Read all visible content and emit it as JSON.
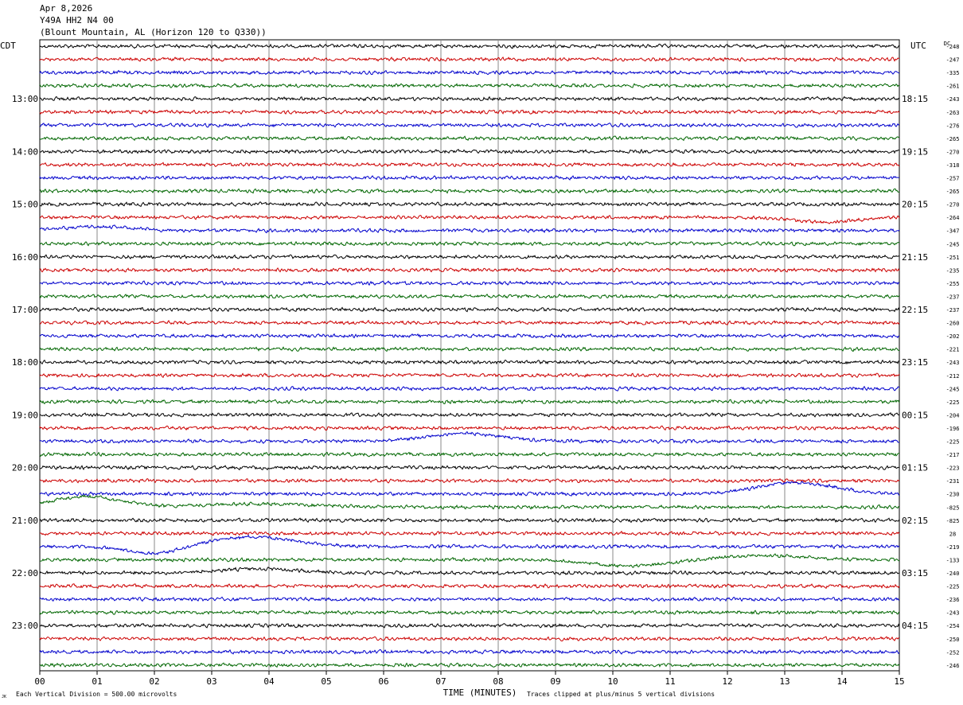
{
  "header": {
    "date": "Apr 8,2026",
    "channel": "Y49A HH2 N4 00",
    "station": "(Blount Mountain, AL (Horizon 120 to Q330))"
  },
  "chart_data": {
    "type": "line",
    "left_axis_label": "CDT",
    "right_axis_label": "UTC",
    "dc_label": "DC",
    "xlabel": "TIME (MINUTES)",
    "x_ticks": [
      "00",
      "01",
      "02",
      "03",
      "04",
      "05",
      "06",
      "07",
      "08",
      "09",
      "10",
      "11",
      "12",
      "13",
      "14",
      "15"
    ],
    "xlim": [
      0,
      15
    ],
    "left_hour_labels": [
      "13:00",
      "14:00",
      "15:00",
      "16:00",
      "17:00",
      "18:00",
      "19:00",
      "20:00",
      "21:00",
      "22:00",
      "23:00"
    ],
    "right_hour_labels": [
      "18:15",
      "19:15",
      "20:15",
      "21:15",
      "22:15",
      "23:15",
      "00:15",
      "01:15",
      "02:15",
      "03:15",
      "04:15"
    ],
    "trace_colors": [
      "#000000",
      "#cc0000",
      "#0000cc",
      "#006600"
    ],
    "dc_offsets": [
      "-248",
      "-247",
      "-335",
      "-261",
      "-243",
      "-263",
      "-276",
      "-265",
      "-270",
      "-318",
      "-257",
      "-265",
      "-270",
      "-264",
      "-347",
      "-245",
      "-251",
      "-235",
      "-255",
      "-237",
      "-237",
      "-260",
      "-202",
      "-221",
      "-243",
      "-212",
      "-245",
      "-225",
      "-204",
      "-196",
      "-225",
      "-217",
      "-223",
      "-231",
      "-230",
      "-825",
      "-825",
      "28",
      "-219",
      "-133",
      "-240",
      "-225",
      "-236",
      "-243",
      "-254",
      "-250",
      "-252",
      "-246"
    ],
    "events": [
      {
        "trace": 14,
        "x": 1.0,
        "dx": 1.3,
        "amp": -5
      },
      {
        "trace": 13,
        "x": 13.7,
        "dx": 1.2,
        "amp": 6
      },
      {
        "trace": 30,
        "x": 7.4,
        "dx": 1.4,
        "amp": -10
      },
      {
        "trace": 34,
        "x": 13.2,
        "dx": 1.5,
        "amp": -14
      },
      {
        "trace": 35,
        "x": 0.8,
        "dx": 1.3,
        "amp": -13
      },
      {
        "trace": 35,
        "x": 3.8,
        "dx": 2.0,
        "amp": -4
      },
      {
        "trace": 38,
        "x": 2.0,
        "dx": 1.0,
        "amp": 9
      },
      {
        "trace": 38,
        "x": 3.7,
        "dx": 1.6,
        "amp": -12
      },
      {
        "trace": 39,
        "x": 10.3,
        "dx": 1.5,
        "amp": 8
      },
      {
        "trace": 39,
        "x": 12.6,
        "dx": 1.8,
        "amp": -5
      },
      {
        "trace": 40,
        "x": 3.8,
        "dx": 1.5,
        "amp": -5
      }
    ]
  },
  "footer": {
    "scale_note": "Each Vertical Division =  500.00 microvolts",
    "clip_note": "Traces clipped at plus/minus 5 vertical divisions",
    "corner_mark": "JK"
  }
}
